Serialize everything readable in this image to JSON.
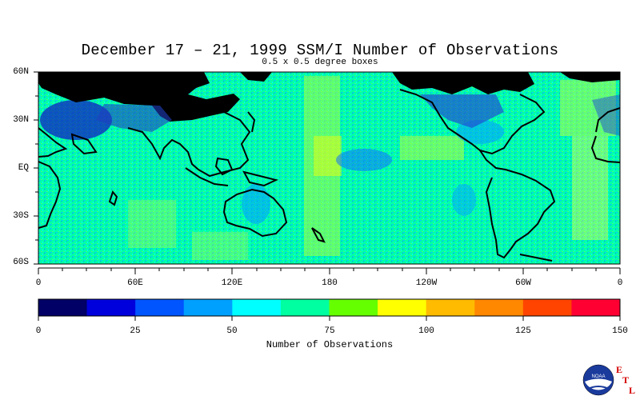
{
  "title": "December 17 – 21, 1999 SSM/I Number of Observations",
  "subtitle": "0.5 x 0.5 degree boxes",
  "chart_data": {
    "type": "heatmap",
    "title": "December 17 – 21, 1999 SSM/I Number of Observations",
    "subtitle": "0.5 x 0.5 degree boxes",
    "x_tick_labels": [
      "0",
      "60E",
      "120E",
      "180",
      "120W",
      "60W",
      "0"
    ],
    "y_tick_labels": [
      "60N",
      "30N",
      "EQ",
      "30S",
      "60S"
    ],
    "x_range": [
      0,
      360
    ],
    "y_range": [
      -60,
      60
    ],
    "colorbar": {
      "label": "Number of Observations",
      "range": [
        0,
        150
      ],
      "tick_labels": [
        "0",
        "25",
        "50",
        "75",
        "100",
        "125",
        "150"
      ],
      "colors": [
        "#000066",
        "#0000dd",
        "#0055ff",
        "#00a0ff",
        "#00ffff",
        "#00ffa0",
        "#66ff00",
        "#ffff00",
        "#ffbb00",
        "#ff8800",
        "#ff4400",
        "#ff0033"
      ]
    }
  },
  "logo": {
    "text": "NOAA",
    "letters": [
      "E",
      "T",
      "L"
    ]
  }
}
